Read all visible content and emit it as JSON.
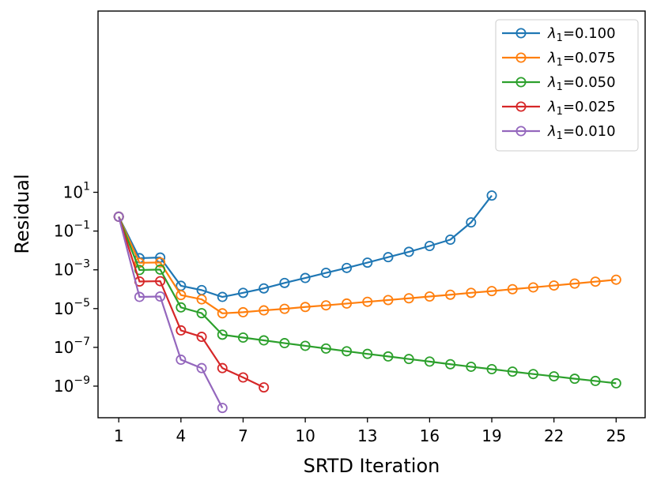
{
  "chart_data": {
    "type": "line",
    "xlabel": "SRTD Iteration",
    "ylabel": "Residual",
    "xlim": [
      0,
      26.4
    ],
    "x_ticks": [
      "1",
      "4",
      "7",
      "10",
      "13",
      "16",
      "19",
      "22",
      "25"
    ],
    "x_tick_values": [
      1,
      4,
      7,
      10,
      13,
      16,
      19,
      22,
      25
    ],
    "yscale": "log",
    "ylim_log10": [
      -10.63,
      10.35
    ],
    "y_ticks": [
      {
        "base": "10",
        "exp": "1",
        "log": 1
      },
      {
        "base": "10",
        "exp": "−1",
        "log": -1
      },
      {
        "base": "10",
        "exp": "−3",
        "log": -3
      },
      {
        "base": "10",
        "exp": "−5",
        "log": -5
      },
      {
        "base": "10",
        "exp": "−7",
        "log": -7
      },
      {
        "base": "10",
        "exp": "−9",
        "log": -9
      }
    ],
    "legend_placement": "top-right",
    "series": [
      {
        "symbol": "λ",
        "sub": "1",
        "value": "=0.100",
        "color": "#1f77b4",
        "x": [
          1,
          2,
          3,
          4,
          5,
          6,
          7,
          8,
          9,
          10,
          11,
          12,
          13,
          14,
          15,
          16,
          17,
          18,
          19
        ],
        "y": [
          0.55,
          0.004,
          0.0043,
          0.00015,
          9e-05,
          4e-05,
          6.5e-05,
          0.00011,
          0.00021,
          0.00038,
          0.0007,
          0.00125,
          0.00235,
          0.0045,
          0.0085,
          0.017,
          0.036,
          0.28,
          6.8
        ]
      },
      {
        "symbol": "λ",
        "sub": "1",
        "value": "=0.075",
        "color": "#ff7f0e",
        "x": [
          1,
          2,
          3,
          4,
          5,
          6,
          7,
          8,
          9,
          10,
          11,
          12,
          13,
          14,
          15,
          16,
          17,
          18,
          19,
          20,
          21,
          22,
          23,
          24,
          25
        ],
        "y": [
          0.55,
          0.0023,
          0.0024,
          5e-05,
          3e-05,
          5.7e-06,
          6.5e-06,
          8.1e-06,
          9.7e-06,
          1.21e-05,
          1.47e-05,
          1.82e-05,
          2.24e-05,
          2.76e-05,
          3.4e-05,
          4.2e-05,
          5.2e-05,
          6.5e-05,
          8e-05,
          0.0001,
          0.000124,
          0.000155,
          0.000195,
          0.000245,
          0.00031
        ]
      },
      {
        "symbol": "λ",
        "sub": "1",
        "value": "=0.050",
        "color": "#2ca02c",
        "x": [
          1,
          2,
          3,
          4,
          5,
          6,
          7,
          8,
          9,
          10,
          11,
          12,
          13,
          14,
          15,
          16,
          17,
          18,
          19,
          20,
          21,
          22,
          23,
          24,
          25
        ],
        "y": [
          0.55,
          0.00098,
          0.00103,
          1.15e-05,
          5.8e-06,
          4.5e-07,
          3.2e-07,
          2.3e-07,
          1.65e-07,
          1.2e-07,
          8.7e-08,
          6.3e-08,
          4.6e-08,
          3.4e-08,
          2.5e-08,
          1.85e-08,
          1.35e-08,
          1e-08,
          7.5e-09,
          5.6e-09,
          4.2e-09,
          3.2e-09,
          2.4e-09,
          1.85e-09,
          1.4e-09
        ]
      },
      {
        "symbol": "λ",
        "sub": "1",
        "value": "=0.025",
        "color": "#d62728",
        "x": [
          1,
          2,
          3,
          4,
          5,
          6,
          7,
          8
        ],
        "y": [
          0.55,
          0.00025,
          0.00026,
          7.5e-07,
          3.5e-07,
          8.5e-09,
          2.8e-09,
          8.6e-10
        ]
      },
      {
        "symbol": "λ",
        "sub": "1",
        "value": "=0.010",
        "color": "#9467bd",
        "x": [
          1,
          2,
          3,
          4,
          5,
          6
        ],
        "y": [
          0.55,
          4e-05,
          4.2e-05,
          2.3e-08,
          8.5e-09,
          7.5e-11
        ]
      }
    ]
  }
}
